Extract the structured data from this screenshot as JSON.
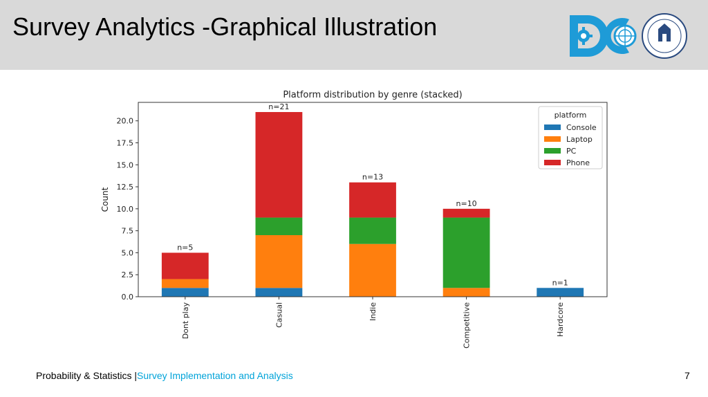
{
  "slide": {
    "title": "Survey Analytics -Graphical Illustration",
    "footer_course": "Probability & Statistics |",
    "footer_topic": "Survey Implementation and Analysis",
    "page_number": "7",
    "logo_seal_text": "INHA UNIVERSITY"
  },
  "colors": {
    "header_bg": "#d9d9d9",
    "footer_accent": "#00a3d9",
    "logo_teal": "#1e9bd7"
  },
  "chart_data": {
    "type": "bar",
    "stacked": true,
    "title": "Platform distribution by genre (stacked)",
    "xlabel": "",
    "ylabel": "Count",
    "categories": [
      "Dont play",
      "Casual",
      "Indie",
      "Competitive",
      "Hardcore"
    ],
    "series": [
      {
        "name": "Console",
        "color": "#1f77b4",
        "values": [
          1,
          1,
          0,
          0,
          1
        ]
      },
      {
        "name": "Laptop",
        "color": "#ff7f0e",
        "values": [
          1,
          6,
          6,
          1,
          0
        ]
      },
      {
        "name": "PC",
        "color": "#2ca02c",
        "values": [
          0,
          2,
          3,
          8,
          0
        ]
      },
      {
        "name": "Phone",
        "color": "#d62728",
        "values": [
          3,
          12,
          4,
          1,
          0
        ]
      }
    ],
    "bar_labels": [
      "n=5",
      "n=21",
      "n=13",
      "n=10",
      "n=1"
    ],
    "yticks": [
      "0.0",
      "2.5",
      "5.0",
      "7.5",
      "10.0",
      "12.5",
      "15.0",
      "17.5",
      "20.0"
    ],
    "ylim": [
      0,
      22.1
    ],
    "legend_title": "platform",
    "legend_position": "top-right",
    "grid": false
  }
}
